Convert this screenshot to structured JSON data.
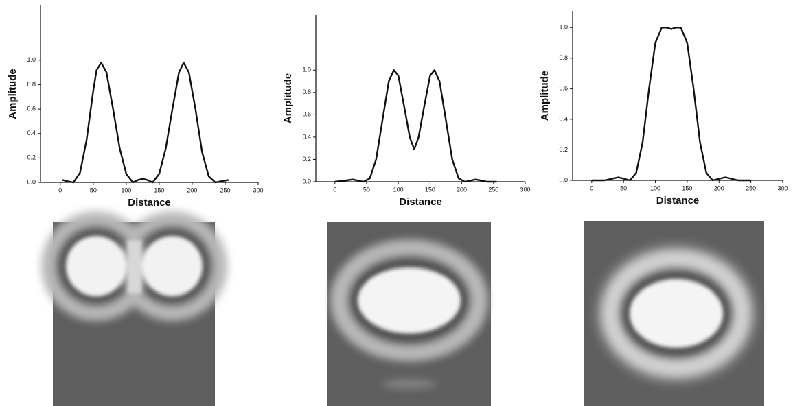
{
  "chart_data": [
    {
      "type": "line",
      "xlabel": "Distance",
      "ylabel": "Amplitude",
      "color": "#111111",
      "x": [
        3,
        10,
        20,
        30,
        40,
        50,
        55,
        62,
        70,
        80,
        90,
        100,
        110,
        118,
        125,
        132,
        140,
        150,
        160,
        170,
        180,
        187,
        195,
        205,
        215,
        225,
        235,
        245,
        255
      ],
      "values": [
        0.02,
        0.01,
        0.0,
        0.08,
        0.35,
        0.75,
        0.92,
        0.98,
        0.9,
        0.6,
        0.28,
        0.07,
        0.0,
        0.02,
        0.03,
        0.02,
        0.0,
        0.07,
        0.28,
        0.6,
        0.9,
        0.98,
        0.9,
        0.6,
        0.25,
        0.05,
        0.0,
        0.01,
        0.02
      ],
      "xlim": [
        -30,
        300
      ],
      "xticks": [
        0,
        50,
        100,
        150,
        200,
        250,
        300
      ],
      "ylim": [
        0,
        1.1
      ],
      "yticks": [
        {
          "value": 0,
          "label": "0.0"
        },
        0.2,
        0.4,
        0.6,
        0.8,
        {
          "value": 1,
          "label": "1.0"
        }
      ]
    },
    {
      "type": "line",
      "xlabel": "Distance",
      "ylabel": "Amplitude",
      "color": "#111111",
      "x": [
        0,
        15,
        28,
        45,
        55,
        65,
        75,
        85,
        93,
        100,
        110,
        118,
        125,
        132,
        140,
        150,
        157,
        165,
        175,
        185,
        195,
        205,
        222,
        240,
        255
      ],
      "values": [
        0,
        0.01,
        0.02,
        0.0,
        0.03,
        0.2,
        0.55,
        0.9,
        1.0,
        0.95,
        0.65,
        0.4,
        0.29,
        0.4,
        0.65,
        0.95,
        1.0,
        0.9,
        0.55,
        0.2,
        0.03,
        0.0,
        0.02,
        0.0,
        0.0
      ],
      "xlim": [
        -30,
        300
      ],
      "xticks": [
        0,
        50,
        100,
        150,
        200,
        250,
        300
      ],
      "ylim": [
        0,
        1.1
      ],
      "yticks": [
        {
          "value": 0,
          "label": "0.0"
        },
        0.2,
        0.4,
        0.6,
        0.8,
        {
          "value": 1,
          "label": "1.0"
        }
      ]
    },
    {
      "type": "line",
      "xlabel": "Distance",
      "ylabel": "Amplitude",
      "color": "#111111",
      "x": [
        0,
        20,
        42,
        60,
        70,
        80,
        90,
        100,
        110,
        118,
        125,
        132,
        140,
        150,
        160,
        170,
        180,
        190,
        210,
        230,
        250
      ],
      "values": [
        0,
        0,
        0.02,
        0.0,
        0.05,
        0.25,
        0.6,
        0.9,
        1.0,
        1.0,
        0.99,
        1.0,
        1.0,
        0.9,
        0.6,
        0.25,
        0.05,
        0.0,
        0.02,
        0.0,
        0.0
      ],
      "xlim": [
        -30,
        300
      ],
      "xticks": [
        0,
        50,
        100,
        150,
        200,
        250,
        300
      ],
      "ylim": [
        0,
        1.1
      ],
      "yticks": [
        {
          "value": 0,
          "label": "0.0"
        },
        0.2,
        0.4,
        0.6,
        0.8,
        {
          "value": 1,
          "label": "1.0"
        }
      ]
    }
  ]
}
